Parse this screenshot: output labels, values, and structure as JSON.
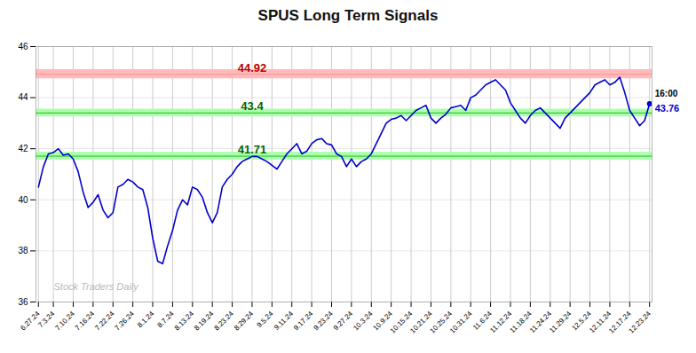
{
  "chart_data": {
    "type": "line",
    "title": "SPUS Long Term Signals",
    "watermark": "Stock Traders Daily",
    "color": "#0000cc",
    "grid": true,
    "ylim": [
      36,
      46
    ],
    "yticks": [
      36,
      38,
      40,
      42,
      44,
      46
    ],
    "categories": [
      "6.27.24",
      null,
      null,
      "7.3.24",
      null,
      null,
      null,
      "7.10.24",
      null,
      null,
      null,
      "7.16.24",
      null,
      null,
      null,
      "7.22.24",
      null,
      null,
      null,
      "7.26.24",
      null,
      null,
      null,
      "8.1.24",
      null,
      null,
      null,
      "8.7.24",
      null,
      null,
      null,
      "8.13.24",
      null,
      null,
      null,
      "8.19.24",
      null,
      null,
      null,
      "8.23.24",
      null,
      null,
      null,
      "8.29.24",
      null,
      null,
      null,
      "9.5.24",
      null,
      null,
      null,
      "9.11.24",
      null,
      null,
      null,
      "9.17.24",
      null,
      null,
      null,
      "9.23.24",
      null,
      null,
      null,
      "9.27.24",
      null,
      null,
      null,
      "10.3.24",
      null,
      null,
      null,
      "10.9.24",
      null,
      null,
      null,
      "10.15.24",
      null,
      null,
      null,
      "10.21.24",
      null,
      null,
      null,
      "10.25.24",
      null,
      null,
      null,
      "10.31.24",
      null,
      null,
      null,
      "11.6.24",
      null,
      null,
      null,
      "11.12.24",
      null,
      null,
      null,
      "11.18.24",
      null,
      null,
      null,
      "11.24.24",
      null,
      null,
      null,
      "11.29.24",
      null,
      null,
      null,
      "12.5.24",
      null,
      null,
      null,
      "12.11.24",
      null,
      null,
      null,
      "12.17.24",
      null,
      null,
      null,
      "12.23.24"
    ],
    "values": [
      40.5,
      41.3,
      41.8,
      41.85,
      42.0,
      41.75,
      41.8,
      41.6,
      41.1,
      40.3,
      39.7,
      39.9,
      40.2,
      39.6,
      39.3,
      39.5,
      40.5,
      40.6,
      40.8,
      40.7,
      40.5,
      40.4,
      39.7,
      38.5,
      37.6,
      37.5,
      38.2,
      38.8,
      39.6,
      40.0,
      39.8,
      40.5,
      40.4,
      40.1,
      39.5,
      39.1,
      39.5,
      40.5,
      40.8,
      41.0,
      41.3,
      41.5,
      41.6,
      41.7,
      41.7,
      41.6,
      41.5,
      41.35,
      41.2,
      41.5,
      41.8,
      42.0,
      42.2,
      41.8,
      41.9,
      42.2,
      42.35,
      42.4,
      42.2,
      42.15,
      41.8,
      41.7,
      41.3,
      41.6,
      41.3,
      41.5,
      41.6,
      41.8,
      42.2,
      42.6,
      43.0,
      43.15,
      43.2,
      43.3,
      43.1,
      43.3,
      43.5,
      43.6,
      43.7,
      43.2,
      43.0,
      43.2,
      43.35,
      43.6,
      43.65,
      43.7,
      43.5,
      44.0,
      44.1,
      44.3,
      44.5,
      44.6,
      44.7,
      44.5,
      44.3,
      43.8,
      43.5,
      43.2,
      43.0,
      43.3,
      43.5,
      43.6,
      43.4,
      43.2,
      43.0,
      42.8,
      43.2,
      43.4,
      43.6,
      43.8,
      44.0,
      44.2,
      44.5,
      44.6,
      44.7,
      44.5,
      44.6,
      44.8,
      44.2,
      43.5,
      43.2,
      42.9,
      43.1,
      43.76
    ],
    "reference_lines": [
      {
        "value": 44.92,
        "band": [
          44.74,
          45.1
        ],
        "color": "#ff8888",
        "band_color": "#ffbbbb",
        "label": "44.92",
        "label_color": "#bb0000"
      },
      {
        "value": 43.4,
        "band": [
          43.25,
          43.55
        ],
        "color": "#00aa00",
        "band_color": "#aaffaa",
        "label": "43.4",
        "label_color": "#006600"
      },
      {
        "value": 41.71,
        "band": [
          41.56,
          41.86
        ],
        "color": "#00aa00",
        "band_color": "#aaffaa",
        "label": "41.71",
        "label_color": "#006600"
      }
    ],
    "last_point_labels": {
      "time": "16:00",
      "price": "43.76",
      "price_color": "#0000cc"
    }
  }
}
